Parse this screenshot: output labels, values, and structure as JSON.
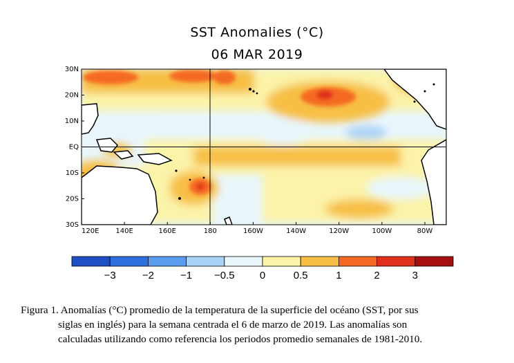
{
  "map": {
    "title": "SST Anomalies (°C)",
    "date": "06 MAR 2019",
    "lat_labels": [
      "30N",
      "20N",
      "10N",
      "EQ",
      "10S",
      "20S",
      "30S"
    ],
    "lon_labels": [
      "120E",
      "140E",
      "160E",
      "180",
      "160W",
      "140W",
      "120W",
      "100W",
      "80W"
    ],
    "lat_range": [
      -30,
      30
    ],
    "lon_range_east_deg": [
      120,
      290
    ],
    "reference_lines": [
      "EQ",
      "180"
    ]
  },
  "colorbar": {
    "labels": [
      "−3",
      "−2",
      "−1",
      "−0.5",
      "0",
      "0.5",
      "1",
      "2",
      "3"
    ],
    "colors": [
      "#1f4fc4",
      "#2e6fe0",
      "#5a9cf0",
      "#a9d2f7",
      "#e8f6fb",
      "#fbf3a8",
      "#f7bf45",
      "#f56a22",
      "#e0301a",
      "#a50f0f"
    ],
    "boundaries": [
      -3,
      -2,
      -1,
      -0.5,
      0,
      0.5,
      1,
      2,
      3
    ]
  },
  "caption": {
    "line1": "Figura 1. Anomalías (°C) promedio de la temperatura de la superficie del océano (SST, por sus",
    "line2": "siglas en inglés) para la semana centrada el 6 de marzo de 2019. Las anomalías son",
    "line3": "calculadas utilizando como referencia los periodos promedio semanales de 1981-2010."
  }
}
